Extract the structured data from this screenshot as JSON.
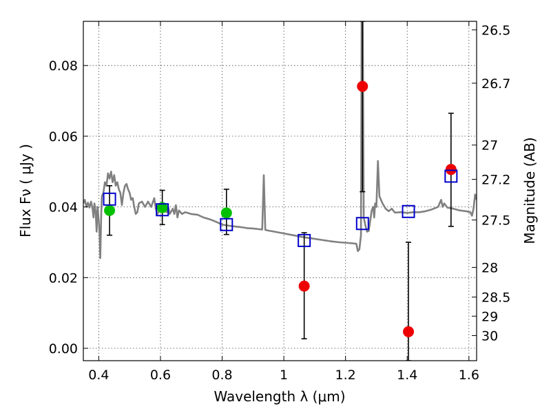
{
  "chart_data": {
    "type": "scatter",
    "xlabel": "Wavelength  λ (μm)",
    "ylabel": "Flux  Fν  ( μJy )",
    "ylabel_right": "Magnitude (AB)",
    "xlim": [
      0.35,
      1.625
    ],
    "ylim": [
      -0.0035,
      0.0925
    ],
    "grid": true,
    "x_ticks": [
      {
        "value": 0.4,
        "label": "0.4"
      },
      {
        "value": 0.6,
        "label": "0.6"
      },
      {
        "value": 0.8,
        "label": "0.8"
      },
      {
        "value": 1.0,
        "label": "1"
      },
      {
        "value": 1.2,
        "label": "1.2"
      },
      {
        "value": 1.4,
        "label": "1.4"
      },
      {
        "value": 1.6,
        "label": "1.6"
      }
    ],
    "y_ticks": [
      {
        "value": 0.0,
        "label": "0.00"
      },
      {
        "value": 0.02,
        "label": "0.02"
      },
      {
        "value": 0.04,
        "label": "0.04"
      },
      {
        "value": 0.06,
        "label": "0.06"
      },
      {
        "value": 0.08,
        "label": "0.08"
      }
    ],
    "right_ticks": [
      {
        "flux": 0.0901,
        "label": "26.5"
      },
      {
        "flux": 0.075,
        "label": "26.7"
      },
      {
        "flux": 0.0575,
        "label": "27"
      },
      {
        "flux": 0.0478,
        "label": "27.2"
      },
      {
        "flux": 0.0363,
        "label": "27.5"
      },
      {
        "flux": 0.0229,
        "label": "28"
      },
      {
        "flux": 0.0145,
        "label": "28.5"
      },
      {
        "flux": 0.0091,
        "label": "29"
      },
      {
        "flux": 0.0036,
        "label": "30"
      }
    ],
    "series": [
      {
        "marker": "circle",
        "color": "#00c000",
        "points": [
          {
            "x": 0.435,
            "y": 0.039,
            "yerr_low": 0.032,
            "yerr_high": 0.046
          },
          {
            "x": 0.606,
            "y": 0.0398,
            "yerr_low": 0.035,
            "yerr_high": 0.0447
          },
          {
            "x": 0.814,
            "y": 0.0383,
            "yerr_low": 0.0322,
            "yerr_high": 0.045
          }
        ]
      },
      {
        "marker": "circle",
        "color": "#ee0000",
        "points": [
          {
            "x": 1.066,
            "y": 0.0176,
            "yerr_low": 0.0027,
            "yerr_high": 0.0327
          },
          {
            "x": 1.255,
            "y": 0.0741,
            "yerr_low": 0.0443,
            "yerr_high": 0.0925
          },
          {
            "x": 1.404,
            "y": 0.0047,
            "yerr_low": -0.0035,
            "yerr_high": 0.03
          },
          {
            "x": 1.542,
            "y": 0.0506,
            "yerr_low": 0.0345,
            "yerr_high": 0.0665
          }
        ]
      },
      {
        "marker": "square-open",
        "color": "#0000cc",
        "points": [
          {
            "x": 0.435,
            "y": 0.0422
          },
          {
            "x": 0.606,
            "y": 0.0392
          },
          {
            "x": 0.814,
            "y": 0.035
          },
          {
            "x": 1.066,
            "y": 0.0305
          },
          {
            "x": 1.255,
            "y": 0.0353
          },
          {
            "x": 1.404,
            "y": 0.0387
          },
          {
            "x": 1.542,
            "y": 0.0487
          }
        ]
      }
    ],
    "model_spectrum": {
      "color": "#808080",
      "points": [
        [
          0.35,
          0.041
        ],
        [
          0.355,
          0.042
        ],
        [
          0.36,
          0.04
        ],
        [
          0.365,
          0.0412
        ],
        [
          0.37,
          0.0398
        ],
        [
          0.375,
          0.0415
        ],
        [
          0.38,
          0.0395
        ],
        [
          0.383,
          0.037
        ],
        [
          0.386,
          0.041
        ],
        [
          0.39,
          0.0385
        ],
        [
          0.393,
          0.033
        ],
        [
          0.396,
          0.04
        ],
        [
          0.4,
          0.036
        ],
        [
          0.403,
          0.032
        ],
        [
          0.405,
          0.0255
        ],
        [
          0.408,
          0.038
        ],
        [
          0.41,
          0.043
        ],
        [
          0.415,
          0.044
        ],
        [
          0.42,
          0.047
        ],
        [
          0.425,
          0.046
        ],
        [
          0.43,
          0.0495
        ],
        [
          0.435,
          0.048
        ],
        [
          0.44,
          0.05
        ],
        [
          0.445,
          0.047
        ],
        [
          0.45,
          0.049
        ],
        [
          0.455,
          0.046
        ],
        [
          0.46,
          0.047
        ],
        [
          0.465,
          0.045
        ],
        [
          0.47,
          0.044
        ],
        [
          0.475,
          0.0405
        ],
        [
          0.48,
          0.044
        ],
        [
          0.485,
          0.046
        ],
        [
          0.49,
          0.0465
        ],
        [
          0.495,
          0.045
        ],
        [
          0.5,
          0.044
        ],
        [
          0.505,
          0.042
        ],
        [
          0.51,
          0.0425
        ],
        [
          0.515,
          0.04
        ],
        [
          0.52,
          0.038
        ],
        [
          0.525,
          0.0385
        ],
        [
          0.53,
          0.041
        ],
        [
          0.54,
          0.0415
        ],
        [
          0.55,
          0.04
        ],
        [
          0.56,
          0.0415
        ],
        [
          0.57,
          0.04
        ],
        [
          0.58,
          0.0425
        ],
        [
          0.585,
          0.0395
        ],
        [
          0.59,
          0.038
        ],
        [
          0.6,
          0.0395
        ],
        [
          0.61,
          0.0405
        ],
        [
          0.62,
          0.0385
        ],
        [
          0.625,
          0.04
        ],
        [
          0.63,
          0.038
        ],
        [
          0.64,
          0.0395
        ],
        [
          0.645,
          0.038
        ],
        [
          0.65,
          0.0405
        ],
        [
          0.655,
          0.037
        ],
        [
          0.66,
          0.039
        ],
        [
          0.67,
          0.038
        ],
        [
          0.68,
          0.0385
        ],
        [
          0.7,
          0.038
        ],
        [
          0.72,
          0.0378
        ],
        [
          0.74,
          0.037
        ],
        [
          0.76,
          0.0365
        ],
        [
          0.78,
          0.0358
        ],
        [
          0.8,
          0.035
        ],
        [
          0.82,
          0.0347
        ],
        [
          0.84,
          0.0345
        ],
        [
          0.86,
          0.0343
        ],
        [
          0.88,
          0.034
        ],
        [
          0.9,
          0.0339
        ],
        [
          0.92,
          0.0337
        ],
        [
          0.93,
          0.0336
        ],
        [
          0.935,
          0.049
        ],
        [
          0.94,
          0.0335
        ],
        [
          0.95,
          0.0333
        ],
        [
          0.97,
          0.033
        ],
        [
          1.0,
          0.0325
        ],
        [
          1.03,
          0.032
        ],
        [
          1.06,
          0.0315
        ],
        [
          1.09,
          0.0311
        ],
        [
          1.12,
          0.0307
        ],
        [
          1.15,
          0.0303
        ],
        [
          1.18,
          0.03
        ],
        [
          1.21,
          0.0298
        ],
        [
          1.235,
          0.0296
        ],
        [
          1.24,
          0.0275
        ],
        [
          1.245,
          0.028
        ],
        [
          1.25,
          0.032
        ],
        [
          1.252,
          0.0925
        ],
        [
          1.256,
          0.0925
        ],
        [
          1.259,
          0.037
        ],
        [
          1.265,
          0.0345
        ],
        [
          1.27,
          0.033
        ],
        [
          1.275,
          0.0332
        ],
        [
          1.28,
          0.036
        ],
        [
          1.285,
          0.039
        ],
        [
          1.29,
          0.04
        ],
        [
          1.293,
          0.037
        ],
        [
          1.296,
          0.041
        ],
        [
          1.3,
          0.04
        ],
        [
          1.305,
          0.053
        ],
        [
          1.31,
          0.043
        ],
        [
          1.32,
          0.041
        ],
        [
          1.33,
          0.0395
        ],
        [
          1.34,
          0.0388
        ],
        [
          1.35,
          0.0395
        ],
        [
          1.36,
          0.0384
        ],
        [
          1.38,
          0.0385
        ],
        [
          1.4,
          0.0383
        ],
        [
          1.42,
          0.0385
        ],
        [
          1.44,
          0.0385
        ],
        [
          1.46,
          0.0388
        ],
        [
          1.48,
          0.0393
        ],
        [
          1.5,
          0.04
        ],
        [
          1.51,
          0.042
        ],
        [
          1.515,
          0.04
        ],
        [
          1.52,
          0.041
        ],
        [
          1.53,
          0.0398
        ],
        [
          1.55,
          0.0395
        ],
        [
          1.57,
          0.039
        ],
        [
          1.59,
          0.0388
        ],
        [
          1.605,
          0.0385
        ],
        [
          1.61,
          0.0375
        ],
        [
          1.615,
          0.0395
        ],
        [
          1.62,
          0.0435
        ],
        [
          1.625,
          0.042
        ]
      ]
    }
  }
}
